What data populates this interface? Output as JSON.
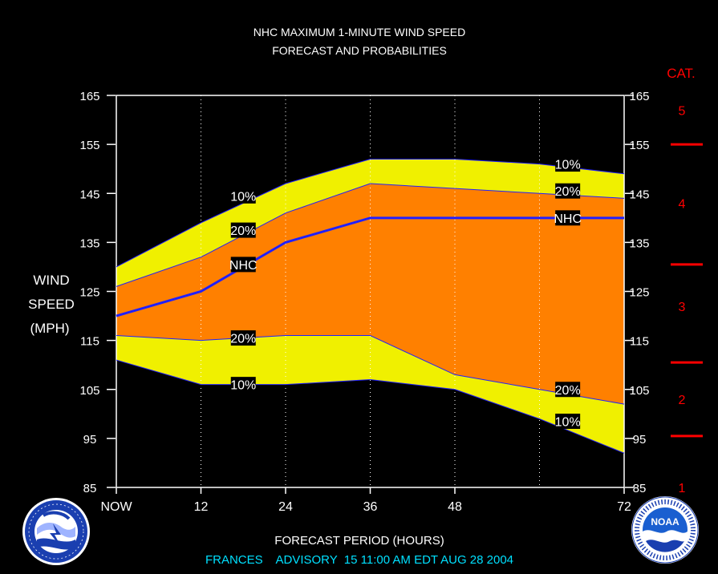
{
  "chart_data": {
    "type": "area",
    "title": "NHC MAXIMUM 1-MINUTE WIND SPEED",
    "subtitle": "FORECAST AND PROBABILITIES",
    "ylabel_lines": [
      "WIND",
      "SPEED",
      "(MPH)"
    ],
    "xlabel": "FORECAST PERIOD (HOURS)",
    "footer": "FRANCES    ADVISORY  15 11:00 AM EDT AUG 28 2004",
    "xlim": [
      0,
      72
    ],
    "ylim": [
      85,
      165
    ],
    "x_ticks": [
      {
        "x": 0,
        "label": "NOW"
      },
      {
        "x": 12,
        "label": "12"
      },
      {
        "x": 24,
        "label": "24"
      },
      {
        "x": 36,
        "label": "36"
      },
      {
        "x": 48,
        "label": "48"
      },
      {
        "x": 72,
        "label": "72"
      }
    ],
    "x_gridlines": [
      12,
      24,
      36,
      48,
      60
    ],
    "y_ticks": [
      85,
      95,
      105,
      115,
      125,
      135,
      145,
      155,
      165
    ],
    "series": [
      {
        "name": "10%",
        "role": "upper",
        "x": [
          0,
          12,
          24,
          36,
          48,
          60,
          72
        ],
        "values": [
          130,
          139,
          147,
          152,
          152,
          151,
          149
        ]
      },
      {
        "name": "20%",
        "role": "upper",
        "x": [
          0,
          12,
          24,
          36,
          48,
          60,
          72
        ],
        "values": [
          126,
          132,
          141,
          147,
          146,
          145,
          144
        ]
      },
      {
        "name": "NHC",
        "x": [
          0,
          12,
          24,
          36,
          48,
          60,
          72
        ],
        "values": [
          120,
          125,
          135,
          140,
          140,
          140,
          140
        ]
      },
      {
        "name": "20%",
        "role": "lower",
        "x": [
          0,
          12,
          24,
          36,
          48,
          60,
          72
        ],
        "values": [
          116,
          115,
          116,
          116,
          108,
          105,
          102
        ]
      },
      {
        "name": "10%",
        "role": "lower",
        "x": [
          0,
          12,
          24,
          36,
          48,
          60,
          72
        ],
        "values": [
          111,
          106,
          106,
          107,
          105,
          99,
          92
        ]
      }
    ],
    "line_labels": [
      {
        "text": "10%",
        "x": 18,
        "y": 144.5
      },
      {
        "text": "20%",
        "x": 18,
        "y": 137.5
      },
      {
        "text": "NHC",
        "x": 18,
        "y": 130.5
      },
      {
        "text": "20%",
        "x": 18,
        "y": 115.5
      },
      {
        "text": "10%",
        "x": 18,
        "y": 106
      },
      {
        "text": "10%",
        "x": 64,
        "y": 151
      },
      {
        "text": "20%",
        "x": 64,
        "y": 145.5
      },
      {
        "text": "NHC",
        "x": 64,
        "y": 140
      },
      {
        "text": "20%",
        "x": 64,
        "y": 105
      },
      {
        "text": "10%",
        "x": 64,
        "y": 98.5
      }
    ],
    "category_scale": {
      "title": "CAT.",
      "labels": [
        {
          "text": "5",
          "y": 162
        },
        {
          "text": "4",
          "y": 143
        },
        {
          "text": "3",
          "y": 122
        },
        {
          "text": "2",
          "y": 103
        },
        {
          "text": "1",
          "y": 85
        }
      ],
      "boundaries": [
        155,
        130.5,
        110.5,
        95.5
      ]
    },
    "colors": {
      "outer_band": "#f0f000",
      "inner_band": "#ff8000",
      "nhc_line": "#2020ff",
      "category": "#ff0000",
      "footer": "#00e0ff"
    }
  },
  "logos": {
    "left": "NATIONAL WEATHER SERVICE",
    "right_center": "NOAA",
    "right_ring": "NATIONAL OCEANIC AND ATMOSPHERIC ADMINISTRATION · U.S. DEPARTMENT OF COMMERCE"
  }
}
